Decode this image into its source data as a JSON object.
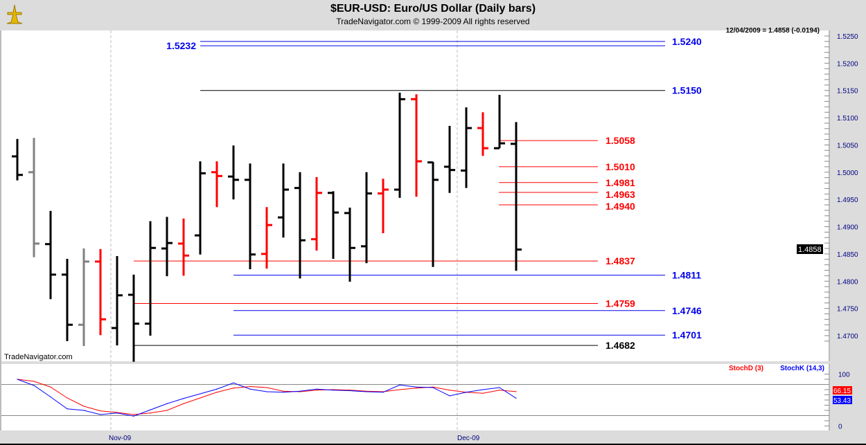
{
  "header": {
    "title": "$EUR-USD:  Euro/US Dollar  (Daily bars)",
    "subtitle": "TradeNavigator.com © 1999-2009 All rights reserved",
    "logo": "Trade Navigator logo"
  },
  "quote_readout": "12/04/2009 = 1.4858 (-0.0194)",
  "watermark": "TradeNavigator.com",
  "last_price_label": "1.4858",
  "colors": {
    "up": "#000000",
    "down": "#ff0000",
    "neutral": "#808080",
    "blue_level": "#0000ee",
    "red_level": "#ff0000",
    "stochD": "#ff0000",
    "stochK": "#0000ff"
  },
  "chart_data": [
    {
      "type": "ohlc",
      "title": "$EUR-USD:  Euro/US Dollar  (Daily bars)",
      "ylim": [
        1.465,
        1.527
      ],
      "y_ticks": [
        "1.4700",
        "1.4750",
        "1.4800",
        "1.4850",
        "1.4900",
        "1.4950",
        "1.5000",
        "1.5050",
        "1.5100",
        "1.5150",
        "1.5200",
        "1.5250"
      ],
      "x_tick_labels": [
        "Nov-09",
        "Dec-09"
      ],
      "grid": "vertical dashed at month starts",
      "bars": [
        {
          "o": 1.5029,
          "h": 1.5061,
          "l": 1.4985,
          "c": 1.4995,
          "color": "up"
        },
        {
          "o": 1.5,
          "h": 1.5063,
          "l": 1.4844,
          "c": 1.4869,
          "color": "neutral"
        },
        {
          "o": 1.4868,
          "h": 1.4929,
          "l": 1.4767,
          "c": 1.4812,
          "color": "up"
        },
        {
          "o": 1.4812,
          "h": 1.4841,
          "l": 1.469,
          "c": 1.472,
          "color": "up"
        },
        {
          "o": 1.472,
          "h": 1.486,
          "l": 1.4681,
          "c": 1.4836,
          "color": "neutral"
        },
        {
          "o": 1.4836,
          "h": 1.4859,
          "l": 1.4701,
          "c": 1.473,
          "color": "down"
        },
        {
          "o": 1.4714,
          "h": 1.4846,
          "l": 1.4682,
          "c": 1.4774,
          "color": "up"
        },
        {
          "o": 1.4775,
          "h": 1.4812,
          "l": 1.4652,
          "c": 1.4722,
          "color": "up"
        },
        {
          "o": 1.4722,
          "h": 1.491,
          "l": 1.47,
          "c": 1.4861,
          "color": "up"
        },
        {
          "o": 1.486,
          "h": 1.4918,
          "l": 1.4809,
          "c": 1.487,
          "color": "up"
        },
        {
          "o": 1.4869,
          "h": 1.4915,
          "l": 1.481,
          "c": 1.4847,
          "color": "down"
        },
        {
          "o": 1.4884,
          "h": 1.502,
          "l": 1.4849,
          "c": 1.4998,
          "color": "up"
        },
        {
          "o": 1.5,
          "h": 1.502,
          "l": 1.4936,
          "c": 1.4993,
          "color": "down"
        },
        {
          "o": 1.4992,
          "h": 1.5049,
          "l": 1.495,
          "c": 1.4986,
          "color": "up"
        },
        {
          "o": 1.4986,
          "h": 1.5016,
          "l": 1.4822,
          "c": 1.4849,
          "color": "up"
        },
        {
          "o": 1.485,
          "h": 1.4936,
          "l": 1.4823,
          "c": 1.4903,
          "color": "down"
        },
        {
          "o": 1.4917,
          "h": 1.5016,
          "l": 1.488,
          "c": 1.4968,
          "color": "up"
        },
        {
          "o": 1.4971,
          "h": 1.5,
          "l": 1.4805,
          "c": 1.4875,
          "color": "up"
        },
        {
          "o": 1.4877,
          "h": 1.4991,
          "l": 1.4856,
          "c": 1.4962,
          "color": "down"
        },
        {
          "o": 1.4962,
          "h": 1.4965,
          "l": 1.4841,
          "c": 1.4926,
          "color": "up"
        },
        {
          "o": 1.4925,
          "h": 1.4935,
          "l": 1.4799,
          "c": 1.4861,
          "color": "up"
        },
        {
          "o": 1.4864,
          "h": 1.5,
          "l": 1.4833,
          "c": 1.4961,
          "color": "up"
        },
        {
          "o": 1.4961,
          "h": 1.4988,
          "l": 1.4888,
          "c": 1.4968,
          "color": "down"
        },
        {
          "o": 1.4968,
          "h": 1.5146,
          "l": 1.4953,
          "c": 1.5134,
          "color": "up"
        },
        {
          "o": 1.5134,
          "h": 1.5143,
          "l": 1.4955,
          "c": 1.502,
          "color": "down"
        },
        {
          "o": 1.5018,
          "h": 1.5019,
          "l": 1.4826,
          "c": 1.4986,
          "color": "up"
        },
        {
          "o": 1.501,
          "h": 1.5085,
          "l": 1.4962,
          "c": 1.5004,
          "color": "up"
        },
        {
          "o": 1.5003,
          "h": 1.5119,
          "l": 1.4971,
          "c": 1.5081,
          "color": "up"
        },
        {
          "o": 1.5081,
          "h": 1.511,
          "l": 1.503,
          "c": 1.5044,
          "color": "down"
        },
        {
          "o": 1.5044,
          "h": 1.5142,
          "l": 1.5044,
          "c": 1.5053,
          "color": "up"
        },
        {
          "o": 1.5052,
          "h": 1.5092,
          "l": 1.4819,
          "c": 1.4858,
          "color": "up"
        }
      ],
      "levels": [
        {
          "label": "1.5240",
          "price": 1.524,
          "color": "blue_level",
          "side": "right"
        },
        {
          "label": "1.5232",
          "price": 1.5232,
          "color": "blue_level",
          "side": "left"
        },
        {
          "label": "1.5150",
          "price": 1.515,
          "color": "blue_level",
          "line": "black",
          "side": "right"
        },
        {
          "label": "1.5058",
          "price": 1.5058,
          "color": "red_level",
          "side": "mid"
        },
        {
          "label": "1.5010",
          "price": 1.501,
          "color": "red_level",
          "side": "mid"
        },
        {
          "label": "1.4981",
          "price": 1.4981,
          "color": "red_level",
          "side": "mid"
        },
        {
          "label": "1.4963",
          "price": 1.4963,
          "color": "red_level",
          "side": "mid"
        },
        {
          "label": "1.4940",
          "price": 1.494,
          "color": "red_level",
          "side": "mid"
        },
        {
          "label": "1.4837",
          "price": 1.4837,
          "color": "red_level",
          "side": "mid",
          "long": true
        },
        {
          "label": "1.4811",
          "price": 1.4811,
          "color": "blue_level",
          "side": "right"
        },
        {
          "label": "1.4759",
          "price": 1.4759,
          "color": "red_level",
          "side": "mid",
          "long": true
        },
        {
          "label": "1.4746",
          "price": 1.4746,
          "color": "blue_level",
          "side": "right"
        },
        {
          "label": "1.4701",
          "price": 1.4701,
          "color": "blue_level",
          "side": "right"
        },
        {
          "label": "1.4682",
          "price": 1.4682,
          "color": "black",
          "side": "mid",
          "long": true
        }
      ]
    },
    {
      "type": "line",
      "ylim": [
        0,
        100
      ],
      "y_ticks": [
        "100",
        "0"
      ],
      "reference_lines": [
        80,
        20
      ],
      "series": [
        {
          "name": "StochD (3)",
          "color": "stochD",
          "last_label": "66.15",
          "values": [
            90,
            86,
            75,
            54,
            38,
            29,
            26,
            22,
            25,
            30,
            43,
            54,
            65,
            73,
            76,
            74,
            67,
            66,
            69,
            70,
            69,
            67,
            66,
            70,
            73,
            75,
            69,
            65,
            63,
            69,
            66.15
          ]
        },
        {
          "name": "StochK (14,3)",
          "color": "stochK",
          "last_label": "53.43",
          "values": [
            90,
            78,
            56,
            33,
            30,
            22,
            25,
            19,
            31,
            43,
            53,
            62,
            71,
            83,
            71,
            66,
            65,
            67,
            71,
            69,
            68,
            66,
            65,
            79,
            75,
            74,
            58,
            65,
            70,
            74,
            53.43
          ]
        }
      ]
    }
  ]
}
